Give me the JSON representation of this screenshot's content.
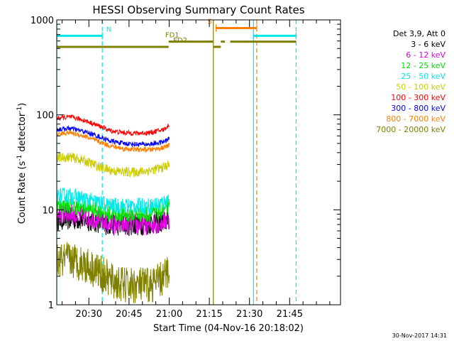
{
  "chart_data": {
    "type": "line",
    "title": "HESSI Observing Summary Count Rates",
    "xlabel": "Start Time (04-Nov-16 20:18:02)",
    "ylabel": "Count Rate (s⁻¹ detector⁻¹)",
    "ylabel_parts": {
      "main": "Count Rate (s",
      "sup1": "-1",
      "mid": " detector",
      "sup2": "-1",
      "end": ")"
    },
    "x_units": "minutes since 20:18:02",
    "xlim": [
      0,
      106
    ],
    "ylim": [
      1,
      1000
    ],
    "yscale": "log",
    "x_ticks": [
      {
        "x": 12,
        "label": "20:30"
      },
      {
        "x": 27,
        "label": "20:45"
      },
      {
        "x": 42,
        "label": "21:00"
      },
      {
        "x": 57,
        "label": "21:15"
      },
      {
        "x": 72,
        "label": "21:30"
      },
      {
        "x": 87,
        "label": "21:45"
      }
    ],
    "y_tick_labels": [
      {
        "value": 1,
        "label": "1"
      },
      {
        "value": 10,
        "label": "10"
      },
      {
        "value": 100,
        "label": "100"
      },
      {
        "value": 1000,
        "label": "1000"
      }
    ],
    "legend_title": "Det 3,9, Att 0",
    "legend_position": "right",
    "series": [
      {
        "name": "3 - 6 keV",
        "color": "#000000",
        "x": [
          0,
          5,
          10,
          15,
          20,
          25,
          30,
          35,
          40,
          42
        ],
        "values": [
          8,
          8,
          8,
          7.5,
          7,
          7,
          7,
          7.2,
          7.5,
          8
        ],
        "noise": 0.28
      },
      {
        "name": "6 - 12 keV",
        "color": "#e000e0",
        "x": [
          0,
          5,
          10,
          15,
          20,
          25,
          30,
          35,
          40,
          42
        ],
        "values": [
          9,
          9,
          8.5,
          8,
          7,
          7,
          7,
          7,
          7.5,
          8
        ],
        "noise": 0.26
      },
      {
        "name": "12 - 25 keV",
        "color": "#00e000",
        "x": [
          0,
          5,
          10,
          15,
          20,
          25,
          30,
          35,
          40,
          42
        ],
        "values": [
          11,
          11,
          10.5,
          10,
          9,
          9,
          9,
          9,
          10,
          11
        ],
        "noise": 0.2
      },
      {
        "name": "25 - 50 keV",
        "color": "#00e8e8",
        "x": [
          0,
          5,
          10,
          15,
          20,
          25,
          30,
          35,
          40,
          42
        ],
        "values": [
          14,
          14,
          13,
          12,
          11,
          11,
          11,
          11,
          12,
          13
        ],
        "noise": 0.2
      },
      {
        "name": "50 - 100 keV",
        "color": "#cccc00",
        "x": [
          0,
          5,
          10,
          15,
          20,
          25,
          30,
          35,
          40,
          42
        ],
        "values": [
          35,
          36,
          33,
          29,
          26,
          25,
          25,
          26,
          28,
          30
        ],
        "noise": 0.12
      },
      {
        "name": "100 - 300 keV",
        "color": "#ff0000",
        "x": [
          0,
          5,
          10,
          15,
          20,
          25,
          30,
          35,
          40,
          42
        ],
        "values": [
          92,
          95,
          88,
          78,
          68,
          65,
          64,
          65,
          70,
          78
        ],
        "noise": 0.06
      },
      {
        "name": "300 - 800 keV",
        "color": "#0000ff",
        "x": [
          0,
          5,
          10,
          15,
          20,
          25,
          30,
          35,
          40,
          42
        ],
        "values": [
          70,
          72,
          67,
          60,
          53,
          50,
          49,
          49,
          52,
          56
        ],
        "noise": 0.06
      },
      {
        "name": "800 - 7000 keV",
        "color": "#ff8000",
        "x": [
          0,
          5,
          10,
          15,
          20,
          25,
          30,
          35,
          40,
          42
        ],
        "values": [
          63,
          65,
          60,
          53,
          47,
          44,
          43,
          43,
          45,
          48
        ],
        "noise": 0.06
      },
      {
        "name": "7000 - 20000 keV",
        "color": "#808000",
        "x": [
          0,
          5,
          10,
          15,
          20,
          25,
          30,
          35,
          40,
          42
        ],
        "values": [
          2.8,
          3,
          2.7,
          2.3,
          1.8,
          1.6,
          1.6,
          1.6,
          1.9,
          2.4
        ],
        "noise": 0.45
      }
    ],
    "vertical_markers": [
      {
        "x": 0,
        "color": "#00e8e8",
        "style": "solid"
      },
      {
        "x": 17,
        "color": "#00e8e8",
        "style": "dashed"
      },
      {
        "x": 58.5,
        "color": "#808000",
        "style": "solid"
      },
      {
        "x": 73.5,
        "color": "#00e8e8",
        "style": "solid"
      },
      {
        "x": 74.7,
        "color": "#ff8000",
        "style": "dashed"
      },
      {
        "x": 89.4,
        "color": "#00e8e8",
        "style": "dashed"
      }
    ],
    "interval_bars": [
      {
        "label": "N",
        "color": "#00e8e8",
        "y": 680,
        "segments": [
          [
            0,
            17
          ],
          [
            73.5,
            89.4
          ]
        ],
        "label_x": 18.5,
        "end_ticks": true
      },
      {
        "label": "S",
        "color": "#ff8000",
        "y": 820,
        "segments": [
          [
            59.5,
            74.7
          ]
        ],
        "label_x": 58,
        "end_ticks": true
      },
      {
        "label": "FD1",
        "color": "#808000",
        "y": 590,
        "segments": [
          [
            41.8,
            58.5
          ],
          [
            61.3,
            62.8
          ],
          [
            64.8,
            89.4
          ]
        ],
        "label_x": 40.5,
        "end_ticks": false
      },
      {
        "label": "FD2",
        "color": "#808000",
        "y": 520,
        "segments": [
          [
            0,
            41.8
          ],
          [
            58.5,
            61.3
          ]
        ],
        "label_x": 43.5,
        "end_ticks": false
      }
    ]
  },
  "timestamp": "30-Nov-2017 14:31"
}
